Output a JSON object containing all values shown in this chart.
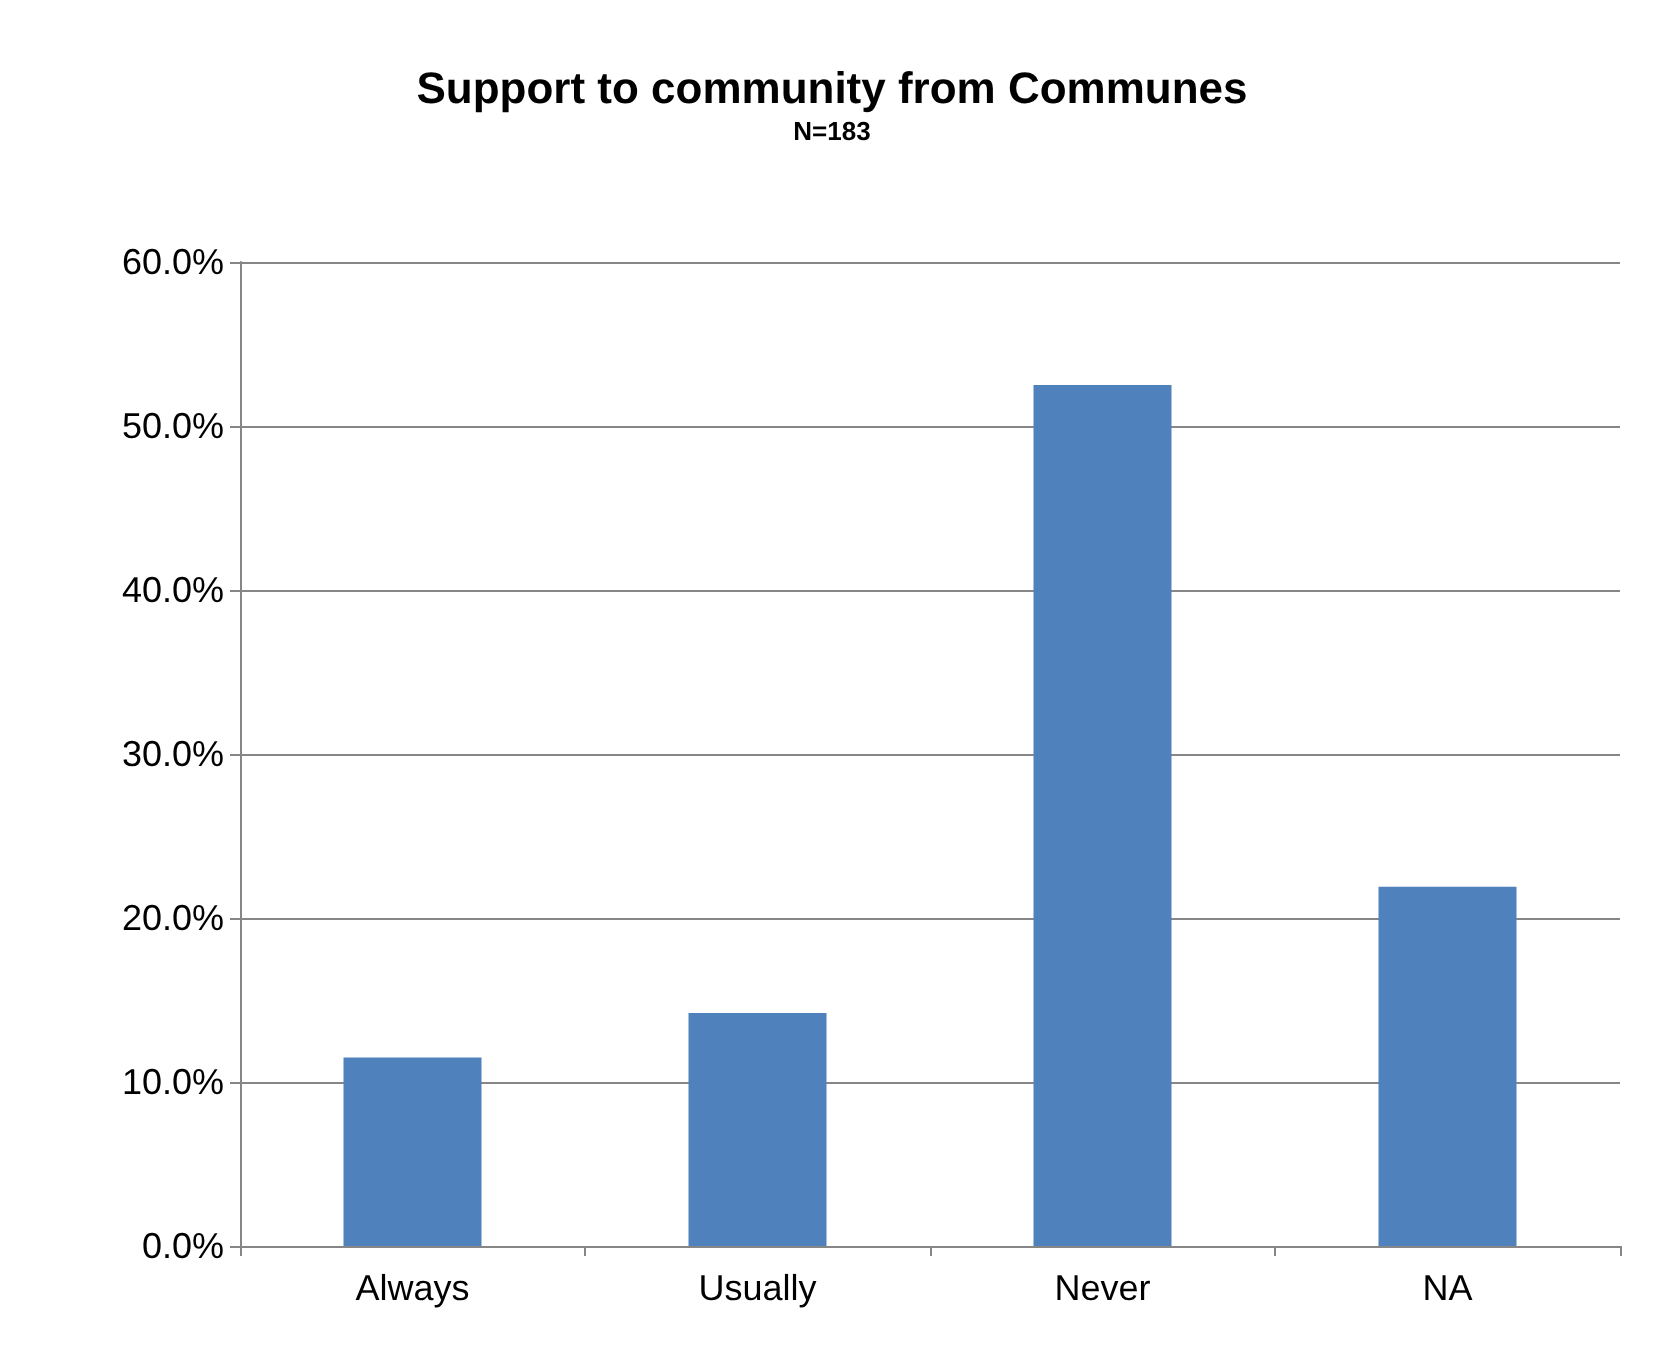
{
  "chart_data": {
    "type": "bar",
    "title": "Support to community from Communes",
    "subtitle": "N=183",
    "categories": [
      "Always",
      "Usually",
      "Never",
      "NA"
    ],
    "values": [
      11.5,
      14.2,
      52.5,
      21.9
    ],
    "color": "#4f81bd",
    "ylim": [
      0,
      60
    ],
    "yticks": [
      {
        "value": 0,
        "label": "0.0%"
      },
      {
        "value": 10,
        "label": "10.0%"
      },
      {
        "value": 20,
        "label": "20.0%"
      },
      {
        "value": 30,
        "label": "30.0%"
      },
      {
        "value": 40,
        "label": "40.0%"
      },
      {
        "value": 50,
        "label": "50.0%"
      },
      {
        "value": 60,
        "label": "60.0%"
      }
    ],
    "grid": "y"
  }
}
